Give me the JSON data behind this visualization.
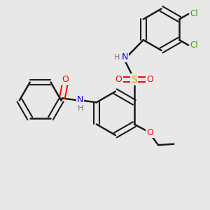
{
  "background_color": "#e8e8e8",
  "bond_color": "#1a1a1a",
  "atom_colors": {
    "O": "#ff0000",
    "N": "#0000ff",
    "S": "#ccaa00",
    "Cl": "#33aa00",
    "H": "#777777",
    "C": "#1a1a1a"
  },
  "figsize": [
    3.0,
    3.0
  ],
  "dpi": 100,
  "xlim": [
    0,
    10
  ],
  "ylim": [
    0,
    10
  ]
}
